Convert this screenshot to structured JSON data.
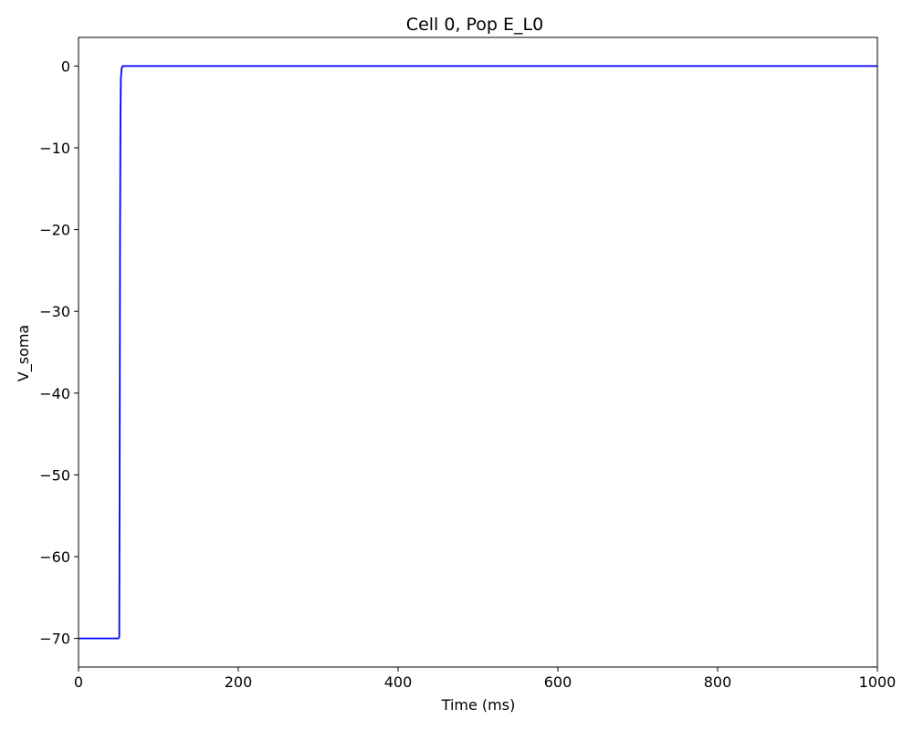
{
  "chart_data": {
    "type": "line",
    "title": "Cell 0, Pop E_L0",
    "xlabel": "Time (ms)",
    "ylabel": "V_soma",
    "xlim": [
      0,
      1000
    ],
    "ylim": [
      -73.5,
      3.5
    ],
    "grid": false,
    "x_ticks": [
      0,
      200,
      400,
      600,
      800,
      1000
    ],
    "x_tick_labels": [
      "0",
      "200",
      "400",
      "600",
      "800",
      "1000"
    ],
    "y_ticks": [
      0,
      -10,
      -20,
      -30,
      -40,
      -50,
      -60,
      -70
    ],
    "y_tick_labels": [
      "0",
      "−10",
      "−20",
      "−30",
      "−40",
      "−50",
      "−60",
      "−70"
    ],
    "series": [
      {
        "color": "#0000ff",
        "x": [
          0,
          50,
          51,
          51.5,
          52,
          52.5,
          53,
          54,
          55,
          1000
        ],
        "y": [
          -70,
          -70,
          -69.8,
          -50,
          -20,
          -6,
          -1.5,
          -0.3,
          0,
          0
        ]
      }
    ]
  }
}
